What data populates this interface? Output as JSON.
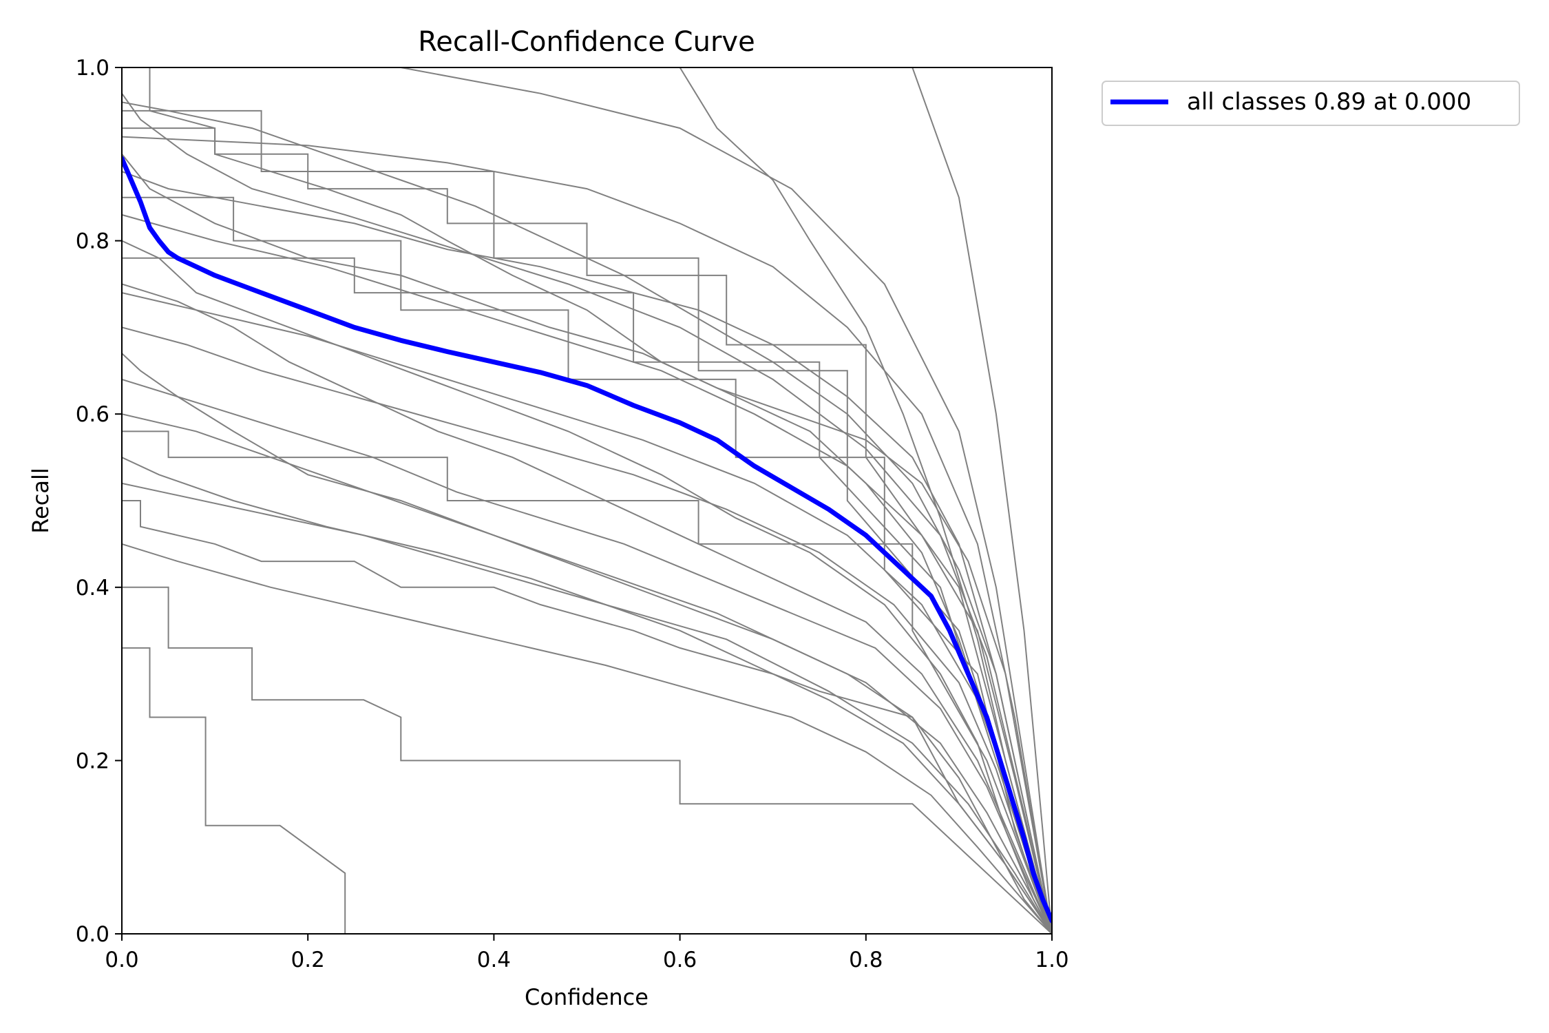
{
  "chart_data": {
    "type": "line",
    "title": "Recall-Confidence Curve",
    "xlabel": "Confidence",
    "ylabel": "Recall",
    "xlim": [
      0,
      1
    ],
    "ylim": [
      0,
      1
    ],
    "x_ticks": [
      "0.0",
      "0.2",
      "0.4",
      "0.6",
      "0.8",
      "1.0"
    ],
    "y_ticks": [
      "0.0",
      "0.2",
      "0.4",
      "0.6",
      "0.8",
      "1.0"
    ],
    "grid": false,
    "legend_position": "outside-top-right",
    "colors": {
      "class_curves": "#808080",
      "all_classes": "#0000ff"
    },
    "series": [
      {
        "name": "all classes 0.89 at 0.000",
        "color": "#0000ff",
        "x": [
          0.0,
          0.01,
          0.02,
          0.03,
          0.04,
          0.05,
          0.06,
          0.08,
          0.1,
          0.12,
          0.15,
          0.18,
          0.2,
          0.25,
          0.3,
          0.35,
          0.4,
          0.45,
          0.5,
          0.55,
          0.6,
          0.64,
          0.68,
          0.72,
          0.76,
          0.8,
          0.84,
          0.87,
          0.89,
          0.91,
          0.93,
          0.95,
          0.97,
          0.98,
          0.99,
          1.0
        ],
        "y": [
          0.895,
          0.87,
          0.845,
          0.815,
          0.8,
          0.787,
          0.78,
          0.77,
          0.76,
          0.752,
          0.74,
          0.728,
          0.72,
          0.7,
          0.685,
          0.672,
          0.66,
          0.648,
          0.633,
          0.61,
          0.59,
          0.57,
          0.54,
          0.515,
          0.49,
          0.46,
          0.42,
          0.39,
          0.35,
          0.3,
          0.25,
          0.18,
          0.11,
          0.07,
          0.04,
          0.015
        ]
      }
    ],
    "class_curves": [
      {
        "x": [
          0.0,
          0.03,
          0.03,
          0.1,
          0.1,
          0.22,
          0.3,
          0.35,
          0.42,
          0.5,
          0.58,
          0.66,
          0.74,
          0.8,
          0.86,
          0.9,
          0.93,
          0.96,
          0.98,
          1.0
        ],
        "y": [
          1.0,
          1.0,
          0.95,
          0.93,
          0.9,
          0.86,
          0.83,
          0.8,
          0.76,
          0.72,
          0.66,
          0.62,
          0.58,
          0.52,
          0.44,
          0.34,
          0.24,
          0.15,
          0.06,
          0.0
        ]
      },
      {
        "x": [
          0.0,
          0.05,
          0.15,
          0.25,
          0.35,
          0.45,
          0.55,
          0.62,
          0.7,
          0.78,
          0.85,
          0.9,
          0.94,
          0.97,
          1.0
        ],
        "y": [
          0.88,
          0.86,
          0.84,
          0.82,
          0.79,
          0.77,
          0.74,
          0.72,
          0.68,
          0.62,
          0.55,
          0.45,
          0.3,
          0.15,
          0.0
        ]
      },
      {
        "x": [
          0.0,
          0.04,
          0.08,
          0.18,
          0.28,
          0.38,
          0.48,
          0.58,
          0.66,
          0.74,
          0.82,
          0.88,
          0.92,
          0.95,
          0.98,
          1.0
        ],
        "y": [
          0.8,
          0.78,
          0.74,
          0.7,
          0.66,
          0.62,
          0.58,
          0.53,
          0.48,
          0.44,
          0.38,
          0.3,
          0.22,
          0.12,
          0.04,
          0.0
        ]
      },
      {
        "x": [
          0.0,
          0.02,
          0.06,
          0.12,
          0.2,
          0.3,
          0.4,
          0.5,
          0.6,
          0.7,
          0.78,
          0.85,
          0.9,
          0.94,
          0.97,
          1.0
        ],
        "y": [
          0.67,
          0.65,
          0.62,
          0.58,
          0.53,
          0.5,
          0.46,
          0.42,
          0.38,
          0.34,
          0.3,
          0.25,
          0.18,
          0.1,
          0.04,
          0.0
        ]
      },
      {
        "x": [
          0.0,
          0.1,
          0.1,
          0.2,
          0.2,
          0.35,
          0.35,
          0.5,
          0.5,
          0.65,
          0.65,
          0.8,
          0.8,
          0.9,
          0.95,
          1.0
        ],
        "y": [
          0.93,
          0.93,
          0.9,
          0.9,
          0.86,
          0.86,
          0.82,
          0.82,
          0.76,
          0.76,
          0.68,
          0.68,
          0.55,
          0.4,
          0.2,
          0.0
        ]
      },
      {
        "x": [
          0.0,
          0.02,
          0.02,
          0.1,
          0.15,
          0.25,
          0.3,
          0.4,
          0.45,
          0.55,
          0.6,
          0.7,
          0.75,
          0.85,
          0.9,
          0.95,
          1.0
        ],
        "y": [
          0.5,
          0.5,
          0.47,
          0.45,
          0.43,
          0.43,
          0.4,
          0.4,
          0.38,
          0.35,
          0.33,
          0.3,
          0.28,
          0.25,
          0.15,
          0.08,
          0.0
        ]
      },
      {
        "x": [
          0.0,
          0.05,
          0.05,
          0.14,
          0.14,
          0.26,
          0.3,
          0.3,
          0.6,
          0.6,
          0.85,
          0.92,
          1.0
        ],
        "y": [
          0.4,
          0.4,
          0.33,
          0.33,
          0.27,
          0.27,
          0.25,
          0.2,
          0.2,
          0.15,
          0.15,
          0.08,
          0.0
        ]
      },
      {
        "x": [
          0.0,
          0.03,
          0.03,
          0.09,
          0.09,
          0.17,
          0.24,
          0.24,
          0.55,
          0.55,
          0.8,
          0.88,
          1.0
        ],
        "y": [
          0.33,
          0.33,
          0.25,
          0.25,
          0.125,
          0.125,
          0.07,
          0.0,
          0.0,
          0.0,
          0.0,
          0.0,
          0.0
        ]
      },
      {
        "x": [
          0.0,
          0.05,
          0.14,
          0.22,
          0.3,
          0.38,
          0.46,
          0.54,
          0.62,
          0.7,
          0.78,
          0.85,
          0.9,
          0.94,
          0.97,
          1.0
        ],
        "y": [
          0.96,
          0.95,
          0.93,
          0.9,
          0.87,
          0.84,
          0.8,
          0.76,
          0.71,
          0.66,
          0.6,
          0.52,
          0.42,
          0.3,
          0.15,
          0.0
        ]
      },
      {
        "x": [
          0.0,
          0.06,
          0.12,
          0.18,
          0.26,
          0.34,
          0.42,
          0.5,
          0.58,
          0.66,
          0.72,
          0.8,
          0.86,
          0.92,
          0.96,
          1.0
        ],
        "y": [
          0.75,
          0.73,
          0.7,
          0.66,
          0.62,
          0.58,
          0.55,
          0.51,
          0.47,
          0.43,
          0.4,
          0.36,
          0.3,
          0.2,
          0.1,
          0.0
        ]
      },
      {
        "x": [
          0.0,
          0.08,
          0.16,
          0.24,
          0.32,
          0.4,
          0.48,
          0.56,
          0.64,
          0.72,
          0.8,
          0.88,
          0.93,
          0.97,
          1.0
        ],
        "y": [
          0.6,
          0.58,
          0.55,
          0.52,
          0.49,
          0.46,
          0.43,
          0.4,
          0.37,
          0.33,
          0.29,
          0.22,
          0.14,
          0.06,
          0.0
        ]
      },
      {
        "x": [
          0.0,
          0.03,
          0.1,
          0.2,
          0.3,
          0.38,
          0.46,
          0.56,
          0.64,
          0.72,
          0.8,
          0.86,
          0.91,
          0.95,
          0.98,
          1.0
        ],
        "y": [
          0.9,
          0.86,
          0.82,
          0.78,
          0.76,
          0.73,
          0.7,
          0.67,
          0.63,
          0.6,
          0.57,
          0.52,
          0.43,
          0.3,
          0.12,
          0.0
        ]
      },
      {
        "x": [
          0.0,
          0.12,
          0.12,
          0.3,
          0.3,
          0.48,
          0.48,
          0.66,
          0.66,
          0.82,
          0.82,
          0.92,
          0.96,
          1.0
        ],
        "y": [
          0.85,
          0.85,
          0.8,
          0.8,
          0.72,
          0.72,
          0.64,
          0.64,
          0.55,
          0.55,
          0.42,
          0.3,
          0.12,
          0.0
        ]
      },
      {
        "x": [
          0.0,
          0.04,
          0.12,
          0.22,
          0.34,
          0.44,
          0.52,
          0.6,
          0.68,
          0.76,
          0.84,
          0.9,
          0.95,
          1.0
        ],
        "y": [
          0.55,
          0.53,
          0.5,
          0.47,
          0.44,
          0.41,
          0.38,
          0.35,
          0.31,
          0.27,
          0.22,
          0.15,
          0.08,
          0.0
        ]
      },
      {
        "x": [
          0.0,
          0.2,
          0.35,
          0.5,
          0.6,
          0.7,
          0.78,
          0.86,
          0.92,
          0.96,
          1.0
        ],
        "y": [
          0.92,
          0.91,
          0.89,
          0.86,
          0.82,
          0.77,
          0.7,
          0.6,
          0.45,
          0.25,
          0.0
        ]
      },
      {
        "x": [
          0.0,
          0.07,
          0.15,
          0.25,
          0.35,
          0.45,
          0.55,
          0.65,
          0.75,
          0.83,
          0.9,
          0.94,
          0.97,
          1.0
        ],
        "y": [
          0.7,
          0.68,
          0.65,
          0.62,
          0.59,
          0.56,
          0.53,
          0.49,
          0.44,
          0.38,
          0.29,
          0.19,
          0.09,
          0.0
        ]
      },
      {
        "x": [
          0.0,
          0.15,
          0.15,
          0.4,
          0.4,
          0.62,
          0.62,
          0.78,
          0.78,
          0.9,
          0.96,
          1.0
        ],
        "y": [
          0.95,
          0.95,
          0.88,
          0.88,
          0.78,
          0.78,
          0.65,
          0.65,
          0.5,
          0.35,
          0.15,
          0.0
        ]
      },
      {
        "x": [
          0.0,
          0.09,
          0.18,
          0.27,
          0.36,
          0.45,
          0.54,
          0.63,
          0.72,
          0.81,
          0.88,
          0.93,
          0.97,
          1.0
        ],
        "y": [
          0.64,
          0.61,
          0.58,
          0.55,
          0.51,
          0.48,
          0.45,
          0.41,
          0.37,
          0.33,
          0.26,
          0.17,
          0.07,
          0.0
        ]
      },
      {
        "x": [
          0.0,
          0.3,
          0.45,
          0.6,
          0.72,
          0.82,
          0.9,
          0.94,
          0.97,
          1.0
        ],
        "y": [
          1.0,
          1.0,
          0.97,
          0.93,
          0.86,
          0.75,
          0.58,
          0.4,
          0.2,
          0.0
        ]
      },
      {
        "x": [
          0.0,
          0.06,
          0.16,
          0.28,
          0.4,
          0.52,
          0.62,
          0.72,
          0.8,
          0.87,
          0.92,
          0.96,
          1.0
        ],
        "y": [
          0.45,
          0.43,
          0.4,
          0.37,
          0.34,
          0.31,
          0.28,
          0.25,
          0.21,
          0.16,
          0.1,
          0.05,
          0.0
        ]
      },
      {
        "x": [
          0.0,
          0.25,
          0.25,
          0.55,
          0.55,
          0.75,
          0.75,
          0.88,
          0.94,
          1.0
        ],
        "y": [
          0.78,
          0.78,
          0.74,
          0.74,
          0.66,
          0.66,
          0.55,
          0.4,
          0.2,
          0.0
        ]
      },
      {
        "x": [
          0.0,
          0.1,
          0.22,
          0.34,
          0.46,
          0.58,
          0.68,
          0.78,
          0.86,
          0.92,
          0.96,
          1.0
        ],
        "y": [
          0.83,
          0.8,
          0.77,
          0.73,
          0.69,
          0.65,
          0.6,
          0.54,
          0.46,
          0.35,
          0.18,
          0.0
        ]
      },
      {
        "x": [
          0.0,
          0.05,
          0.05,
          0.35,
          0.35,
          0.62,
          0.62,
          0.85,
          0.85,
          0.93,
          1.0
        ],
        "y": [
          0.58,
          0.58,
          0.55,
          0.55,
          0.5,
          0.5,
          0.45,
          0.45,
          0.35,
          0.2,
          0.0
        ]
      },
      {
        "x": [
          0.6,
          0.64,
          0.7,
          0.74,
          0.8,
          0.84,
          0.88,
          0.92,
          0.95,
          0.98,
          1.0
        ],
        "y": [
          1.0,
          0.93,
          0.87,
          0.8,
          0.7,
          0.6,
          0.48,
          0.34,
          0.2,
          0.08,
          0.0
        ]
      },
      {
        "x": [
          0.0,
          0.08,
          0.2,
          0.32,
          0.44,
          0.56,
          0.68,
          0.78,
          0.86,
          0.92,
          0.97,
          1.0
        ],
        "y": [
          0.74,
          0.72,
          0.69,
          0.65,
          0.61,
          0.57,
          0.52,
          0.46,
          0.38,
          0.27,
          0.12,
          0.0
        ]
      },
      {
        "x": [
          0.0,
          0.13,
          0.26,
          0.39,
          0.52,
          0.65,
          0.76,
          0.85,
          0.91,
          0.96,
          1.0
        ],
        "y": [
          0.52,
          0.49,
          0.46,
          0.42,
          0.38,
          0.34,
          0.28,
          0.22,
          0.15,
          0.07,
          0.0
        ]
      },
      {
        "x": [
          0.0,
          0.02,
          0.07,
          0.14,
          0.24,
          0.36,
          0.48,
          0.6,
          0.7,
          0.8,
          0.88,
          0.93,
          0.97,
          1.0
        ],
        "y": [
          0.97,
          0.94,
          0.9,
          0.86,
          0.83,
          0.79,
          0.75,
          0.7,
          0.64,
          0.56,
          0.46,
          0.32,
          0.14,
          0.0
        ]
      },
      {
        "x": [
          0.85,
          0.9,
          0.94,
          0.97,
          0.99,
          1.0
        ],
        "y": [
          1.0,
          0.85,
          0.6,
          0.35,
          0.12,
          0.0
        ]
      }
    ]
  }
}
